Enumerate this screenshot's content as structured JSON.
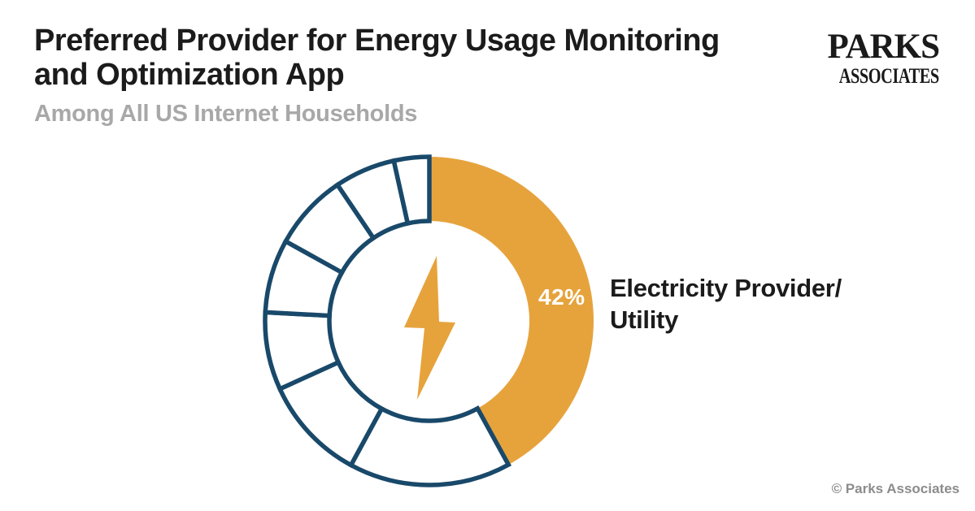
{
  "header": {
    "title_line1": "Preferred Provider for Energy Usage Monitoring",
    "title_line2": "and Optimization App",
    "subtitle": "Among All US Internet Households"
  },
  "logo": {
    "name": "Parks Associates",
    "line1": "PARKS",
    "line2": "ASSOCIATES"
  },
  "callout": {
    "value_label": "42%",
    "label_line1": "Electricity Provider/",
    "label_line2": "Utility"
  },
  "footer": {
    "copyright": "© Parks Associates"
  },
  "colors": {
    "accent_orange": "#E6A33C",
    "outline_navy": "#19496A",
    "title_black": "#1B1B1B",
    "subtitle_gray": "#A8A8A8",
    "copyright_gray": "#8C8C8C",
    "background": "#FFFFFF"
  },
  "chart_data": {
    "type": "pie",
    "subtype": "donut",
    "title": "Preferred Provider for Energy Usage Monitoring and Optimization App",
    "subtitle": "Among All US Internet Households",
    "center_icon": "lightning-bolt",
    "legend_position": "right-of-highlighted-slice",
    "donut": {
      "outer_radius": 202,
      "inner_radius": 123,
      "rotation_start_deg_from_top_clockwise": 0
    },
    "highlight": {
      "label": "Electricity Provider/Utility",
      "pct": 42,
      "value_label": "42%",
      "color": "#E6A33C"
    },
    "segments": [
      {
        "label": "Electricity Provider/Utility",
        "pct": 42.0,
        "start_deg": 0,
        "end_deg": 151.2,
        "style": "filled"
      },
      {
        "label": "",
        "pct": 15.9,
        "start_deg": 151.2,
        "end_deg": 208.5,
        "style": "outlined"
      },
      {
        "label": "",
        "pct": 10.3,
        "start_deg": 208.5,
        "end_deg": 245.5,
        "style": "outlined"
      },
      {
        "label": "",
        "pct": 7.6,
        "start_deg": 245.5,
        "end_deg": 273.0,
        "style": "outlined"
      },
      {
        "label": "",
        "pct": 7.2,
        "start_deg": 273.0,
        "end_deg": 299.0,
        "style": "outlined"
      },
      {
        "label": "",
        "pct": 7.5,
        "start_deg": 299.0,
        "end_deg": 326.0,
        "style": "outlined"
      },
      {
        "label": "",
        "pct": 6.0,
        "start_deg": 326.0,
        "end_deg": 347.5,
        "style": "outlined"
      },
      {
        "label": "",
        "pct": 3.5,
        "start_deg": 347.5,
        "end_deg": 360.0,
        "style": "outlined"
      }
    ]
  }
}
